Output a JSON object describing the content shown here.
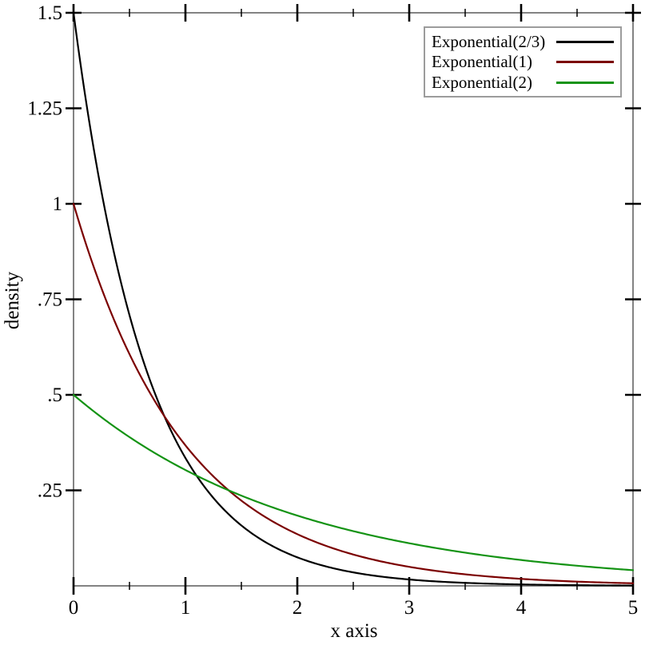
{
  "figure": {
    "background": "#ffffff",
    "frame_color": "#838383",
    "tick_color": "#000000",
    "text_color": "#000000",
    "legend_border_color": "#9c9c9c"
  },
  "chart_data": {
    "type": "line",
    "title": "",
    "xlabel": "x axis",
    "ylabel": "density",
    "xlim": [
      0,
      5
    ],
    "ylim": [
      0,
      1.5
    ],
    "grid": false,
    "legend_position": "top-right",
    "x_major_ticks": [
      0,
      1,
      2,
      3,
      4,
      5
    ],
    "x_tick_labels": [
      "0",
      "1",
      "2",
      "3",
      "4",
      "5"
    ],
    "x_minor_ticks": [
      0.5,
      1.5,
      2.5,
      3.5,
      4.5
    ],
    "y_major_ticks": [
      0.25,
      0.5,
      0.75,
      1.0,
      1.25,
      1.5
    ],
    "y_tick_labels": [
      ".25",
      ".5",
      ".75",
      "1",
      "1.25",
      "1.5"
    ],
    "curve_description": "exponential probability density f(x) = rate * exp(-rate * x)",
    "series": [
      {
        "name": "Exponential(2/3)",
        "slug": "exponential-2-3",
        "color": "#000000",
        "rate": 1.5,
        "x_at_integer": [
          0,
          1,
          2,
          3,
          4,
          5
        ],
        "y_at_integer": [
          1.5,
          0.335,
          0.075,
          0.017,
          0.004,
          0.001
        ]
      },
      {
        "name": "Exponential(1)",
        "slug": "exponential-1",
        "color": "#7b0000",
        "rate": 1.0,
        "x_at_integer": [
          0,
          1,
          2,
          3,
          4,
          5
        ],
        "y_at_integer": [
          1.0,
          0.368,
          0.135,
          0.05,
          0.018,
          0.007
        ]
      },
      {
        "name": "Exponential(2)",
        "slug": "exponential-2",
        "color": "#149314",
        "rate": 0.5,
        "x_at_integer": [
          0,
          1,
          2,
          3,
          4,
          5
        ],
        "y_at_integer": [
          0.5,
          0.303,
          0.184,
          0.112,
          0.068,
          0.041
        ]
      }
    ]
  }
}
